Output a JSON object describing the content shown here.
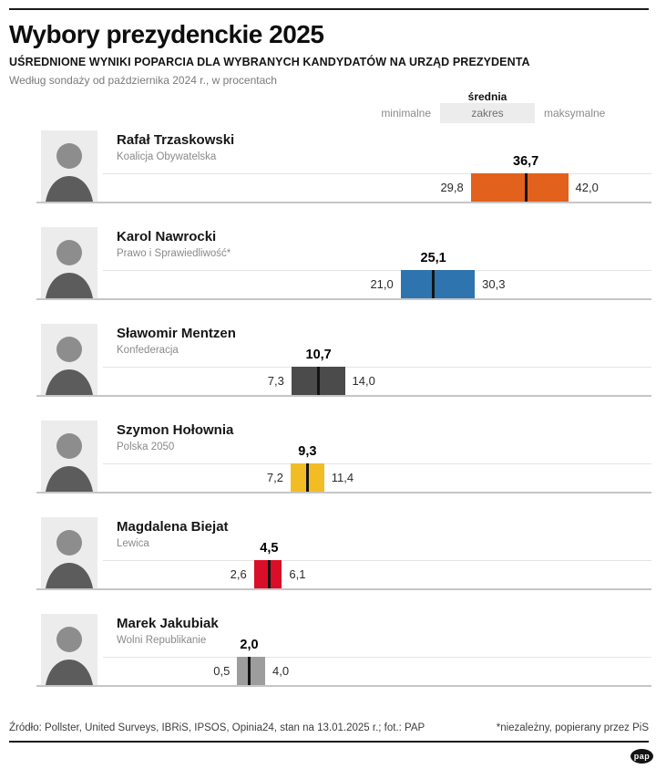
{
  "header": {
    "title": "Wybory prezydenckie 2025",
    "subtitle": "UŚREDNIONE WYNIKI POPARCIA DLA WYBRANYCH KANDYDATÓW NA URZĄD PREZYDENTA",
    "note": "Według sondaży od października 2024 r., w procentach"
  },
  "legend": {
    "mean_label": "średnia",
    "min_label": "minimalne",
    "range_label": "zakres",
    "max_label": "maksymalne",
    "range_box_color": "#ececec"
  },
  "chart_data": {
    "type": "bar",
    "subtype": "horizontal-range-bars-with-mean-tick",
    "unit": "percent",
    "value_axis": {
      "min": 0,
      "max": 52,
      "gridlines": false
    },
    "mean_tick_color": "#141414",
    "series": [
      {
        "candidate": "Rafał Trzaskowski",
        "party": "Koalicja Obywatelska",
        "min": 29.8,
        "mean": 36.7,
        "max": 42.0,
        "min_label": "29,8",
        "mean_label": "36,7",
        "max_label": "42,0",
        "color": "#e2611c"
      },
      {
        "candidate": "Karol Nawrocki",
        "party": "Prawo i Sprawiedliwość*",
        "min": 21.0,
        "mean": 25.1,
        "max": 30.3,
        "min_label": "21,0",
        "mean_label": "25,1",
        "max_label": "30,3",
        "color": "#2e74ae"
      },
      {
        "candidate": "Sławomir Mentzen",
        "party": "Konfederacja",
        "min": 7.3,
        "mean": 10.7,
        "max": 14.0,
        "min_label": "7,3",
        "mean_label": "10,7",
        "max_label": "14,0",
        "color": "#4b4b4b"
      },
      {
        "candidate": "Szymon Hołownia",
        "party": "Polska 2050",
        "min": 7.2,
        "mean": 9.3,
        "max": 11.4,
        "min_label": "7,2",
        "mean_label": "9,3",
        "max_label": "11,4",
        "color": "#f2bc25"
      },
      {
        "candidate": "Magdalena Biejat",
        "party": "Lewica",
        "min": 2.6,
        "mean": 4.5,
        "max": 6.1,
        "min_label": "2,6",
        "mean_label": "4,5",
        "max_label": "6,1",
        "color": "#da0e28"
      },
      {
        "candidate": "Marek Jakubiak",
        "party": "Wolni Republikanie",
        "min": 0.5,
        "mean": 2.0,
        "max": 4.0,
        "min_label": "0,5",
        "mean_label": "2,0",
        "max_label": "4,0",
        "color": "#9d9d9d"
      }
    ]
  },
  "footer": {
    "source": "Źródło: Pollster, United Surveys, IBRiS, IPSOS, Opinia24,  stan na 13.01.2025 r.; fot.: PAP",
    "footnote": "*niezależny, popierany przez PiS",
    "logo_label": "pap"
  }
}
